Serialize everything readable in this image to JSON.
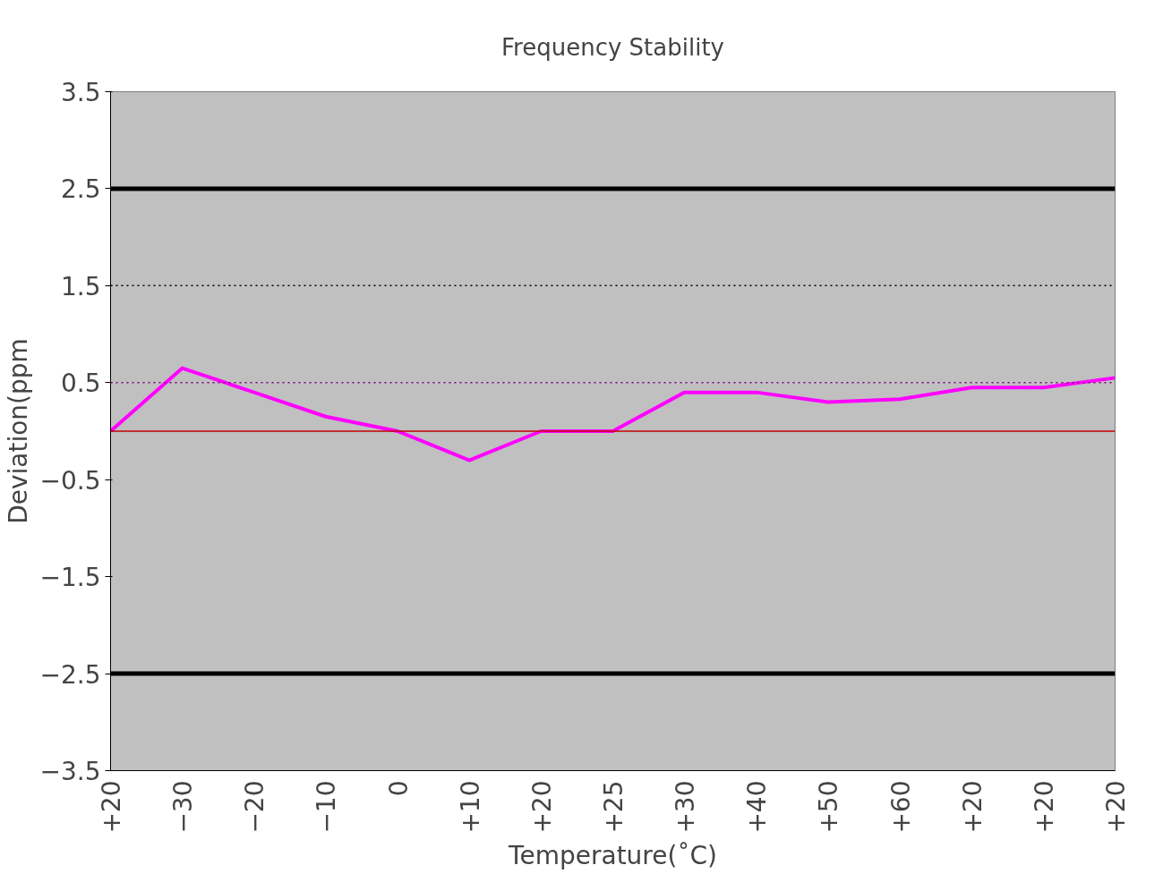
{
  "chart_data": {
    "type": "line",
    "title": "Frequency Stability",
    "xlabel": "Temperature(˚C)",
    "ylabel": "Deviation(ppm",
    "categories": [
      "+20",
      "−30",
      "−20",
      "−10",
      "0",
      "+10",
      "+20",
      "+25",
      "+30",
      "+40",
      "+50",
      "+60",
      "+20",
      "+20",
      "+20"
    ],
    "series": [
      {
        "color": "#ff00ff",
        "values": [
          0,
          0.65,
          0.4,
          0.15,
          0,
          -0.3,
          0,
          0,
          0.4,
          0.4,
          0.3,
          0.33,
          0.45,
          0.45,
          0.55
        ]
      }
    ],
    "ylim": [
      -3.5,
      3.5
    ],
    "yticks": [
      3.5,
      2.5,
      1.5,
      0.5,
      {
        "value": -0.5,
        "label": "−0.5"
      },
      {
        "value": -1.5,
        "label": "−1.5"
      },
      {
        "value": -2.5,
        "label": "−2.5"
      },
      {
        "value": -3.5,
        "label": "−3.5"
      }
    ],
    "ref_lines": [
      {
        "axis": "y",
        "value": 2.5,
        "color": "#000000",
        "line_style": "solid"
      },
      {
        "axis": "y",
        "value": -2.5,
        "color": "#000000",
        "line_style": "solid"
      },
      {
        "axis": "y",
        "value": 1.5,
        "color": "#000000",
        "line_style": "dotted"
      },
      {
        "axis": "y",
        "value": 0.5,
        "color": "#800080",
        "line_style": "dotted"
      },
      {
        "axis": "y",
        "value": 0,
        "color": "#c00000",
        "line_style": "solid"
      }
    ],
    "grid": false,
    "marker": "none",
    "line_style": "solid"
  }
}
